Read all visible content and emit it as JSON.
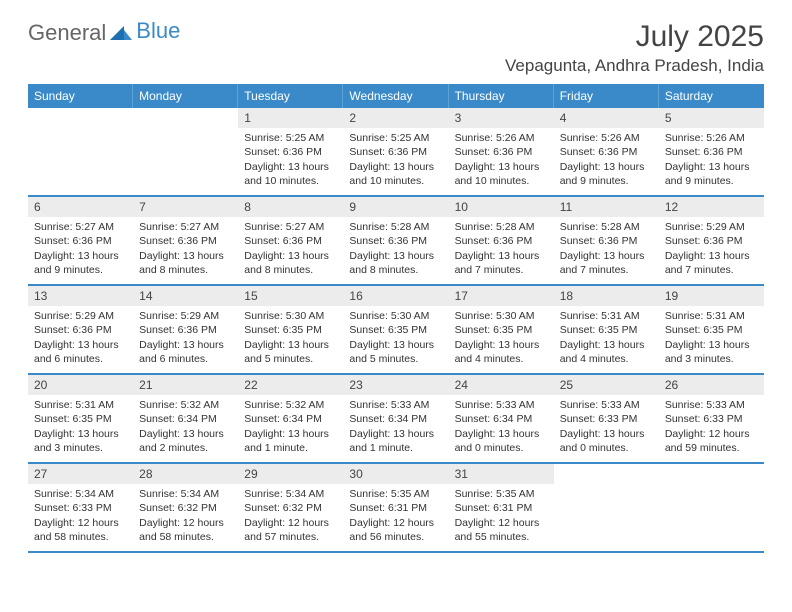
{
  "brand": {
    "part1": "General",
    "part2": "Blue"
  },
  "title": "July 2025",
  "location": "Vepagunta, Andhra Pradesh, India",
  "colors": {
    "header_bg": "#3a8ac9",
    "header_cell_border": "#5fa3d6",
    "band_bg": "#ececec",
    "rule": "#3a8ac9",
    "text": "#333333",
    "title_text": "#444444"
  },
  "day_labels": [
    "Sunday",
    "Monday",
    "Tuesday",
    "Wednesday",
    "Thursday",
    "Friday",
    "Saturday"
  ],
  "weeks": [
    [
      {
        "empty": true
      },
      {
        "empty": true
      },
      {
        "day": "1",
        "sunrise": "Sunrise: 5:25 AM",
        "sunset": "Sunset: 6:36 PM",
        "daylight": "Daylight: 13 hours and 10 minutes."
      },
      {
        "day": "2",
        "sunrise": "Sunrise: 5:25 AM",
        "sunset": "Sunset: 6:36 PM",
        "daylight": "Daylight: 13 hours and 10 minutes."
      },
      {
        "day": "3",
        "sunrise": "Sunrise: 5:26 AM",
        "sunset": "Sunset: 6:36 PM",
        "daylight": "Daylight: 13 hours and 10 minutes."
      },
      {
        "day": "4",
        "sunrise": "Sunrise: 5:26 AM",
        "sunset": "Sunset: 6:36 PM",
        "daylight": "Daylight: 13 hours and 9 minutes."
      },
      {
        "day": "5",
        "sunrise": "Sunrise: 5:26 AM",
        "sunset": "Sunset: 6:36 PM",
        "daylight": "Daylight: 13 hours and 9 minutes."
      }
    ],
    [
      {
        "day": "6",
        "sunrise": "Sunrise: 5:27 AM",
        "sunset": "Sunset: 6:36 PM",
        "daylight": "Daylight: 13 hours and 9 minutes."
      },
      {
        "day": "7",
        "sunrise": "Sunrise: 5:27 AM",
        "sunset": "Sunset: 6:36 PM",
        "daylight": "Daylight: 13 hours and 8 minutes."
      },
      {
        "day": "8",
        "sunrise": "Sunrise: 5:27 AM",
        "sunset": "Sunset: 6:36 PM",
        "daylight": "Daylight: 13 hours and 8 minutes."
      },
      {
        "day": "9",
        "sunrise": "Sunrise: 5:28 AM",
        "sunset": "Sunset: 6:36 PM",
        "daylight": "Daylight: 13 hours and 8 minutes."
      },
      {
        "day": "10",
        "sunrise": "Sunrise: 5:28 AM",
        "sunset": "Sunset: 6:36 PM",
        "daylight": "Daylight: 13 hours and 7 minutes."
      },
      {
        "day": "11",
        "sunrise": "Sunrise: 5:28 AM",
        "sunset": "Sunset: 6:36 PM",
        "daylight": "Daylight: 13 hours and 7 minutes."
      },
      {
        "day": "12",
        "sunrise": "Sunrise: 5:29 AM",
        "sunset": "Sunset: 6:36 PM",
        "daylight": "Daylight: 13 hours and 7 minutes."
      }
    ],
    [
      {
        "day": "13",
        "sunrise": "Sunrise: 5:29 AM",
        "sunset": "Sunset: 6:36 PM",
        "daylight": "Daylight: 13 hours and 6 minutes."
      },
      {
        "day": "14",
        "sunrise": "Sunrise: 5:29 AM",
        "sunset": "Sunset: 6:36 PM",
        "daylight": "Daylight: 13 hours and 6 minutes."
      },
      {
        "day": "15",
        "sunrise": "Sunrise: 5:30 AM",
        "sunset": "Sunset: 6:35 PM",
        "daylight": "Daylight: 13 hours and 5 minutes."
      },
      {
        "day": "16",
        "sunrise": "Sunrise: 5:30 AM",
        "sunset": "Sunset: 6:35 PM",
        "daylight": "Daylight: 13 hours and 5 minutes."
      },
      {
        "day": "17",
        "sunrise": "Sunrise: 5:30 AM",
        "sunset": "Sunset: 6:35 PM",
        "daylight": "Daylight: 13 hours and 4 minutes."
      },
      {
        "day": "18",
        "sunrise": "Sunrise: 5:31 AM",
        "sunset": "Sunset: 6:35 PM",
        "daylight": "Daylight: 13 hours and 4 minutes."
      },
      {
        "day": "19",
        "sunrise": "Sunrise: 5:31 AM",
        "sunset": "Sunset: 6:35 PM",
        "daylight": "Daylight: 13 hours and 3 minutes."
      }
    ],
    [
      {
        "day": "20",
        "sunrise": "Sunrise: 5:31 AM",
        "sunset": "Sunset: 6:35 PM",
        "daylight": "Daylight: 13 hours and 3 minutes."
      },
      {
        "day": "21",
        "sunrise": "Sunrise: 5:32 AM",
        "sunset": "Sunset: 6:34 PM",
        "daylight": "Daylight: 13 hours and 2 minutes."
      },
      {
        "day": "22",
        "sunrise": "Sunrise: 5:32 AM",
        "sunset": "Sunset: 6:34 PM",
        "daylight": "Daylight: 13 hours and 1 minute."
      },
      {
        "day": "23",
        "sunrise": "Sunrise: 5:33 AM",
        "sunset": "Sunset: 6:34 PM",
        "daylight": "Daylight: 13 hours and 1 minute."
      },
      {
        "day": "24",
        "sunrise": "Sunrise: 5:33 AM",
        "sunset": "Sunset: 6:34 PM",
        "daylight": "Daylight: 13 hours and 0 minutes."
      },
      {
        "day": "25",
        "sunrise": "Sunrise: 5:33 AM",
        "sunset": "Sunset: 6:33 PM",
        "daylight": "Daylight: 13 hours and 0 minutes."
      },
      {
        "day": "26",
        "sunrise": "Sunrise: 5:33 AM",
        "sunset": "Sunset: 6:33 PM",
        "daylight": "Daylight: 12 hours and 59 minutes."
      }
    ],
    [
      {
        "day": "27",
        "sunrise": "Sunrise: 5:34 AM",
        "sunset": "Sunset: 6:33 PM",
        "daylight": "Daylight: 12 hours and 58 minutes."
      },
      {
        "day": "28",
        "sunrise": "Sunrise: 5:34 AM",
        "sunset": "Sunset: 6:32 PM",
        "daylight": "Daylight: 12 hours and 58 minutes."
      },
      {
        "day": "29",
        "sunrise": "Sunrise: 5:34 AM",
        "sunset": "Sunset: 6:32 PM",
        "daylight": "Daylight: 12 hours and 57 minutes."
      },
      {
        "day": "30",
        "sunrise": "Sunrise: 5:35 AM",
        "sunset": "Sunset: 6:31 PM",
        "daylight": "Daylight: 12 hours and 56 minutes."
      },
      {
        "day": "31",
        "sunrise": "Sunrise: 5:35 AM",
        "sunset": "Sunset: 6:31 PM",
        "daylight": "Daylight: 12 hours and 55 minutes."
      },
      {
        "empty": true
      },
      {
        "empty": true
      }
    ]
  ]
}
